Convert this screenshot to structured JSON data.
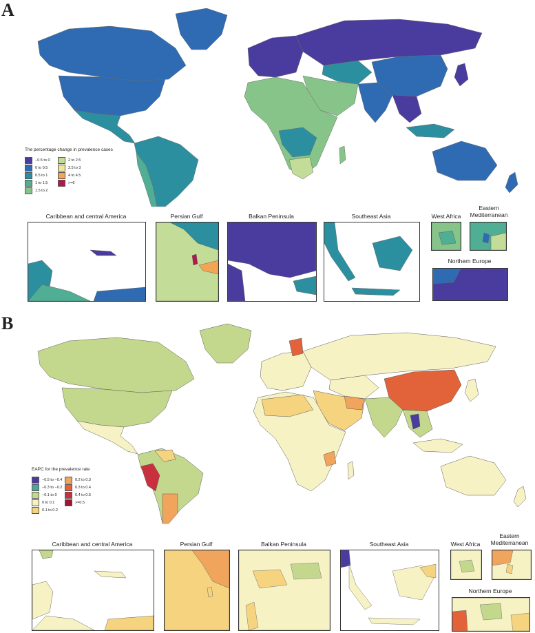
{
  "panelA": {
    "letter": "A",
    "legend": {
      "title": "The percentage change in prevalence cases",
      "items": [
        {
          "label": "−0.5 to 0",
          "color": "#4a3b9e"
        },
        {
          "label": "0 to 0.5",
          "color": "#2f6bb3"
        },
        {
          "label": "0.5 to 1",
          "color": "#2c8fa0"
        },
        {
          "label": "1 to 1.5",
          "color": "#4fae93"
        },
        {
          "label": "1.5 to 2",
          "color": "#86c489"
        },
        {
          "label": "2 to 2.5",
          "color": "#c3dc98"
        },
        {
          "label": "2.5 to 3",
          "color": "#efe69a"
        },
        {
          "label": "4 to 4.5",
          "color": "#f3a553"
        },
        {
          "label": ">=6",
          "color": "#b5174b"
        }
      ]
    },
    "insets": {
      "caribbean": "Caribbean and central America",
      "persian": "Persian Gulf",
      "balkan": "Balkan Peninsula",
      "seasia": "Southeast Asia",
      "westafrica": "West Africa",
      "eastmed": "Eastern Mediterranean",
      "northeurope": "Northern Europe"
    }
  },
  "panelB": {
    "letter": "B",
    "legend": {
      "title": "EAPC for the prevalence rate",
      "items": [
        {
          "label": "−0.5 to −0.4",
          "color": "#4a3b9e"
        },
        {
          "label": "−0.3 to −0.2",
          "color": "#4ea79b"
        },
        {
          "label": "−0.1 to 0",
          "color": "#c3d88c"
        },
        {
          "label": "0 to 0.1",
          "color": "#f6f2c4"
        },
        {
          "label": "0.1 to 0.2",
          "color": "#f6d37f"
        },
        {
          "label": "0.2 to 0.3",
          "color": "#f0a45c"
        },
        {
          "label": "0.3 to 0.4",
          "color": "#e2633a"
        },
        {
          "label": "0.4 to 0.5",
          "color": "#c9303d"
        },
        {
          "label": ">=0.5",
          "color": "#9e1535"
        }
      ]
    },
    "insets": {
      "caribbean": "Caribbean and central America",
      "persian": "Persian Gulf",
      "balkan": "Balkan Peninsula",
      "seasia": "Southeast Asia",
      "westafrica": "West Africa",
      "eastmed": "Eastern Mediterranean",
      "northeurope": "Northern Europe"
    }
  }
}
